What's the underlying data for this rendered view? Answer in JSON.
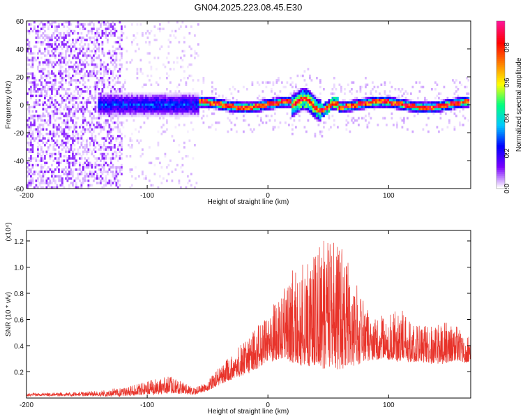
{
  "title": "GN04.2025.223.08.45.E30",
  "chart_data": [
    {
      "type": "heatmap",
      "xlabel": "Height of straight line (km)",
      "ylabel": "Frequency (Hz)",
      "xlim": [
        -200,
        168
      ],
      "ylim": [
        -60,
        60
      ],
      "xticks": [
        -200,
        -100,
        0,
        100
      ],
      "yticks": [
        -60,
        -40,
        -20,
        0,
        20,
        40,
        60
      ],
      "xtick_labels": [
        "-200",
        "-100",
        "0",
        "100"
      ],
      "ytick_labels": [
        "-60",
        "-40",
        "-20",
        "0",
        "20",
        "40",
        "60"
      ],
      "colorbar": {
        "label": "Normalized spectral amplitude",
        "range": [
          0,
          0.95
        ],
        "ticks": [
          0.0,
          0.2,
          0.4,
          0.6,
          0.8
        ],
        "tick_labels": [
          "0.0",
          "0.2",
          "0.4",
          "0.6",
          "0.8"
        ],
        "colors": [
          "#ffffff",
          "#7a00ff",
          "#0000ff",
          "#00c8ff",
          "#00ff80",
          "#ffff00",
          "#ff8000",
          "#ff0000",
          "#ff1493"
        ]
      },
      "regions": [
        {
          "x": [
            -200,
            -120
          ],
          "freq_center": 0,
          "freq_spread": 60,
          "amplitude": 0.05,
          "note": "broadband noise"
        },
        {
          "x": [
            -120,
            -57
          ],
          "freq_center": 0,
          "freq_spread": 60,
          "amplitude": 0.02,
          "note": "sparse noise"
        },
        {
          "x": [
            -140,
            -57
          ],
          "freq_center": 0,
          "freq_spread": 10,
          "amplitude": 0.3
        },
        {
          "x": [
            -57,
            168
          ],
          "freq_center": 0,
          "freq_spread": 5,
          "amplitude": 0.8,
          "note": "signal ridge near 0 Hz"
        }
      ]
    },
    {
      "type": "line",
      "xlabel": "Height of straight line (km)",
      "ylabel": "SNR (10 * v/v)",
      "y_multiplier": "(x10⁴)",
      "xlim": [
        -200,
        168
      ],
      "ylim": [
        0,
        1.28
      ],
      "xticks": [
        -200,
        -100,
        0,
        100
      ],
      "yticks": [
        0.2,
        0.4,
        0.6,
        0.8,
        1.0,
        1.2
      ],
      "xtick_labels": [
        "-200",
        "-100",
        "0",
        "100"
      ],
      "ytick_labels": [
        "0.2",
        "0.4",
        "0.6",
        "0.8",
        "1.0",
        "1.2"
      ],
      "series_color": "#e8332a",
      "envelope": {
        "x": [
          -200,
          -150,
          -120,
          -100,
          -80,
          -60,
          -50,
          -40,
          -30,
          -20,
          -10,
          0,
          10,
          20,
          30,
          40,
          50,
          60,
          70,
          80,
          90,
          100,
          110,
          120,
          130,
          140,
          150,
          160,
          168
        ],
        "baseline": [
          0.02,
          0.02,
          0.02,
          0.03,
          0.04,
          0.03,
          0.06,
          0.1,
          0.15,
          0.18,
          0.22,
          0.28,
          0.3,
          0.28,
          0.25,
          0.24,
          0.22,
          0.22,
          0.24,
          0.28,
          0.3,
          0.3,
          0.28,
          0.28,
          0.28,
          0.26,
          0.28,
          0.28,
          0.26
        ],
        "peak": [
          0.04,
          0.05,
          0.08,
          0.13,
          0.17,
          0.08,
          0.13,
          0.25,
          0.33,
          0.45,
          0.55,
          0.62,
          0.85,
          0.98,
          1.05,
          1.12,
          1.26,
          1.2,
          0.95,
          0.72,
          0.62,
          0.65,
          0.68,
          0.6,
          0.58,
          0.56,
          0.6,
          0.52,
          0.46
        ]
      }
    }
  ]
}
